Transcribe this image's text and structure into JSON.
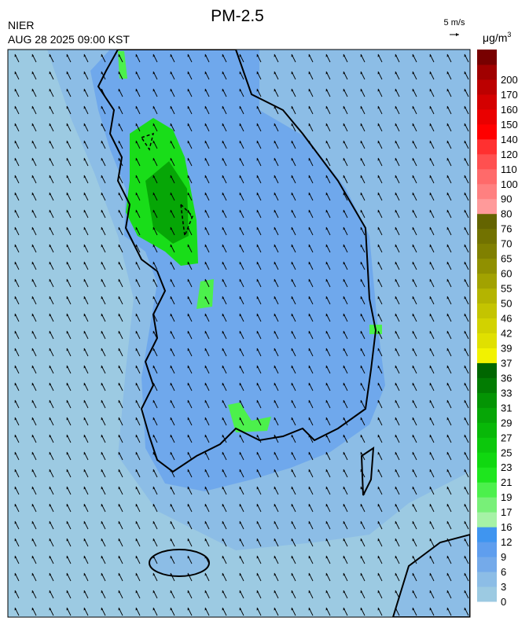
{
  "header": {
    "title": "PM-2.5",
    "agency": "NIER",
    "time": "AUG 28 2025 09:00 KST",
    "wind_scale": "5 m/s"
  },
  "legend": {
    "unit": "μg/m",
    "unit_sup": "3",
    "labels": [
      "0",
      "3",
      "6",
      "9",
      "12",
      "16",
      "17",
      "19",
      "21",
      "23",
      "25",
      "27",
      "29",
      "31",
      "33",
      "36",
      "37",
      "39",
      "42",
      "46",
      "50",
      "55",
      "60",
      "65",
      "70",
      "76",
      "80",
      "90",
      "100",
      "110",
      "120",
      "140",
      "150",
      "160",
      "170",
      "200"
    ],
    "colors": [
      "#9ccae2",
      "#8cbde6",
      "#74aaea",
      "#5f9eee",
      "#3f95f0",
      "#a6f2a6",
      "#78f078",
      "#4cf04c",
      "#1ee61e",
      "#10d810",
      "#0cc80c",
      "#08b808",
      "#06a606",
      "#049404",
      "#027c02",
      "#006600",
      "#f2f200",
      "#e0e000",
      "#d2d200",
      "#c4c400",
      "#b4b400",
      "#a2a200",
      "#909000",
      "#808000",
      "#727200",
      "#646400",
      "#ff9a9a",
      "#ff8080",
      "#ff6a6a",
      "#ff5050",
      "#ff3030",
      "#ff0000",
      "#ea0000",
      "#d40000",
      "#bc0000",
      "#a00000",
      "#780000"
    ]
  }
}
